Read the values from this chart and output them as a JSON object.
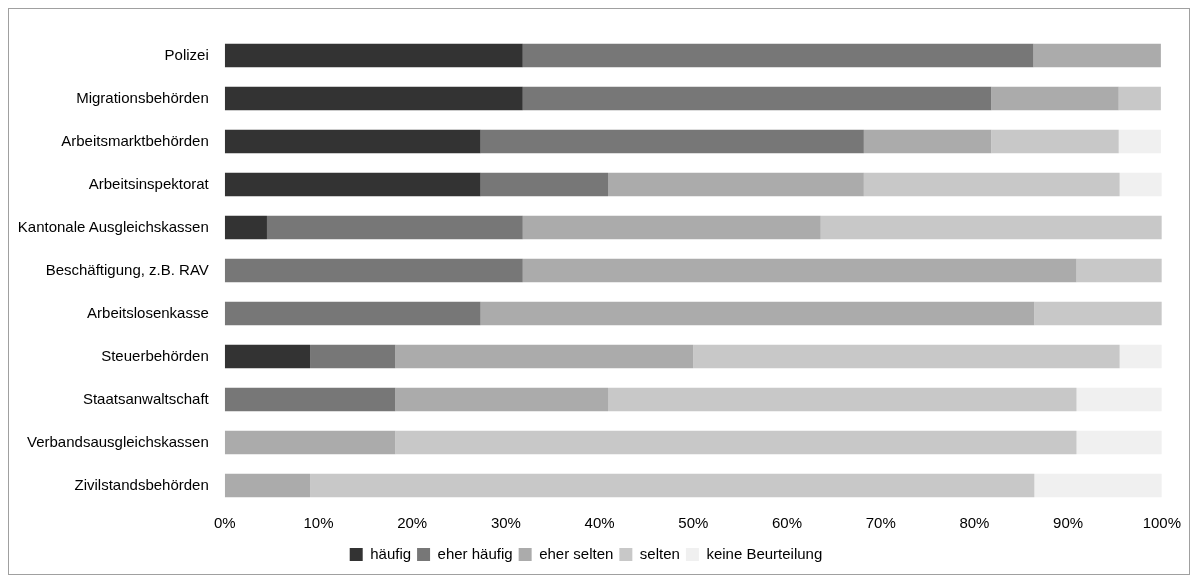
{
  "chart_data": {
    "type": "bar",
    "orientation": "horizontal",
    "stacked": true,
    "legend": "bottom",
    "grid": false,
    "categories": [
      "Polizei",
      "Migrationsbehörden",
      "Arbeitsmarktbehörden",
      "Arbeitsinspektorat",
      "Kantonale Ausgleichskassen",
      "Beschäftigung, z.B. RAV",
      "Arbeitslosenkasse",
      "Steuerbehörden",
      "Staatsanwaltschaft",
      "Verbandsausgleichskassen",
      "Zivilstandsbehörden"
    ],
    "series": [
      {
        "name": "häufig",
        "color": "#333333",
        "values": [
          31.8,
          31.8,
          27.3,
          27.3,
          4.5,
          0,
          0,
          9.1,
          0,
          0,
          0
        ]
      },
      {
        "name": "eher häufig",
        "color": "#777777",
        "values": [
          54.5,
          50,
          40.9,
          13.6,
          27.3,
          31.8,
          27.3,
          9.1,
          18.2,
          0,
          0
        ]
      },
      {
        "name": "eher selten",
        "color": "#ababab",
        "values": [
          13.6,
          13.6,
          13.6,
          27.3,
          31.8,
          59.1,
          59.1,
          31.8,
          22.7,
          18.2,
          9.1
        ]
      },
      {
        "name": "selten",
        "color": "#c8c8c8",
        "values": [
          0,
          4.5,
          13.6,
          27.3,
          36.4,
          9.1,
          13.6,
          45.5,
          50,
          72.7,
          77.3
        ]
      },
      {
        "name": "keine Beurteilung",
        "color": "#f0f0f0",
        "values": [
          0,
          0,
          4.5,
          4.5,
          0,
          0,
          0,
          4.5,
          9.1,
          9.1,
          13.6
        ]
      }
    ],
    "xlim": [
      0,
      100
    ],
    "xticks": [
      {
        "value": 0,
        "label": "0%"
      },
      {
        "value": 10,
        "label": "10%"
      },
      {
        "value": 20,
        "label": "20%"
      },
      {
        "value": 30,
        "label": "30%"
      },
      {
        "value": 40,
        "label": "40%"
      },
      {
        "value": 50,
        "label": "50%"
      },
      {
        "value": 60,
        "label": "60%"
      },
      {
        "value": 70,
        "label": "70%"
      },
      {
        "value": 80,
        "label": "80%"
      },
      {
        "value": 90,
        "label": "90%"
      },
      {
        "value": 100,
        "label": "100%"
      }
    ]
  }
}
